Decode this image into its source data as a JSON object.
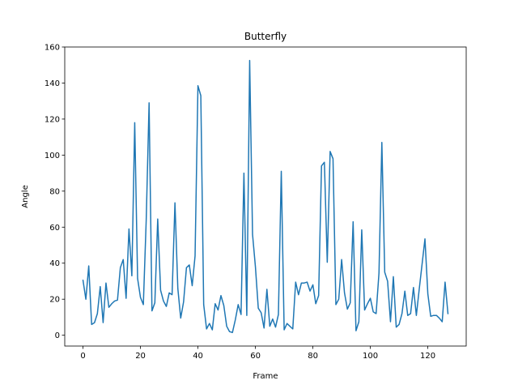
{
  "chart_data": {
    "type": "line",
    "title": "Butterfly",
    "xlabel": "Frame",
    "ylabel": "Angle",
    "xlim": [
      -6.35,
      133.35
    ],
    "ylim": [
      -6,
      160
    ],
    "xticks": [
      0,
      20,
      40,
      60,
      80,
      100,
      120
    ],
    "yticks": [
      0,
      20,
      40,
      60,
      80,
      100,
      120,
      140,
      160
    ],
    "grid": false,
    "series": [
      {
        "color": "#1f77b4",
        "x": [
          0,
          1,
          2,
          3,
          4,
          5,
          6,
          7,
          8,
          9,
          10,
          11,
          12,
          13,
          14,
          15,
          16,
          17,
          18,
          19,
          20,
          21,
          22,
          23,
          24,
          25,
          26,
          27,
          28,
          29,
          30,
          31,
          32,
          33,
          34,
          35,
          36,
          37,
          38,
          39,
          40,
          41,
          42,
          43,
          44,
          45,
          46,
          47,
          48,
          49,
          50,
          51,
          52,
          53,
          54,
          55,
          56,
          57,
          58,
          59,
          60,
          61,
          62,
          63,
          64,
          65,
          66,
          67,
          68,
          69,
          70,
          71,
          72,
          73,
          74,
          75,
          76,
          77,
          78,
          79,
          80,
          81,
          82,
          83,
          84,
          85,
          86,
          87,
          88,
          89,
          90,
          91,
          92,
          93,
          94,
          95,
          96,
          97,
          98,
          99,
          100,
          101,
          102,
          103,
          104,
          105,
          106,
          107,
          108,
          109,
          110,
          111,
          112,
          113,
          114,
          115,
          116,
          117,
          118,
          119,
          120,
          121,
          122,
          123,
          124,
          125,
          126,
          127
        ],
        "values": [
          30.5,
          20,
          38.5,
          6,
          7,
          12,
          27,
          7,
          29,
          15.5,
          17.5,
          19,
          19.5,
          37.5,
          42,
          20.5,
          59,
          33,
          118,
          31.5,
          21,
          17,
          64,
          129,
          13.5,
          18,
          64.5,
          25,
          19,
          16,
          23.5,
          22.5,
          73.5,
          26,
          9.5,
          18.5,
          37.5,
          39,
          27.5,
          44,
          138.5,
          133,
          17,
          3.5,
          6.5,
          3,
          17.5,
          14,
          22,
          16.5,
          5,
          2,
          1.5,
          8.5,
          17,
          11.5,
          90,
          11,
          152.5,
          56,
          38,
          15,
          12.5,
          4,
          25.5,
          5,
          9,
          4.5,
          11.5,
          91,
          3,
          6.5,
          5,
          3.5,
          29.5,
          22.5,
          29,
          29,
          29.5,
          24.5,
          28,
          17.5,
          22,
          94,
          96,
          40.5,
          102,
          98,
          17,
          20,
          42,
          23.5,
          14.5,
          18,
          63,
          2.5,
          7.5,
          58.5,
          14,
          17.5,
          20.5,
          13,
          12,
          34.5,
          107,
          35,
          30,
          7.5,
          32.5,
          4.5,
          6,
          12,
          24.5,
          11,
          12,
          26.5,
          11,
          25.5,
          39.5,
          53.5,
          23,
          10.5,
          11,
          11,
          9.5,
          7.5,
          29.5,
          12
        ]
      }
    ]
  }
}
